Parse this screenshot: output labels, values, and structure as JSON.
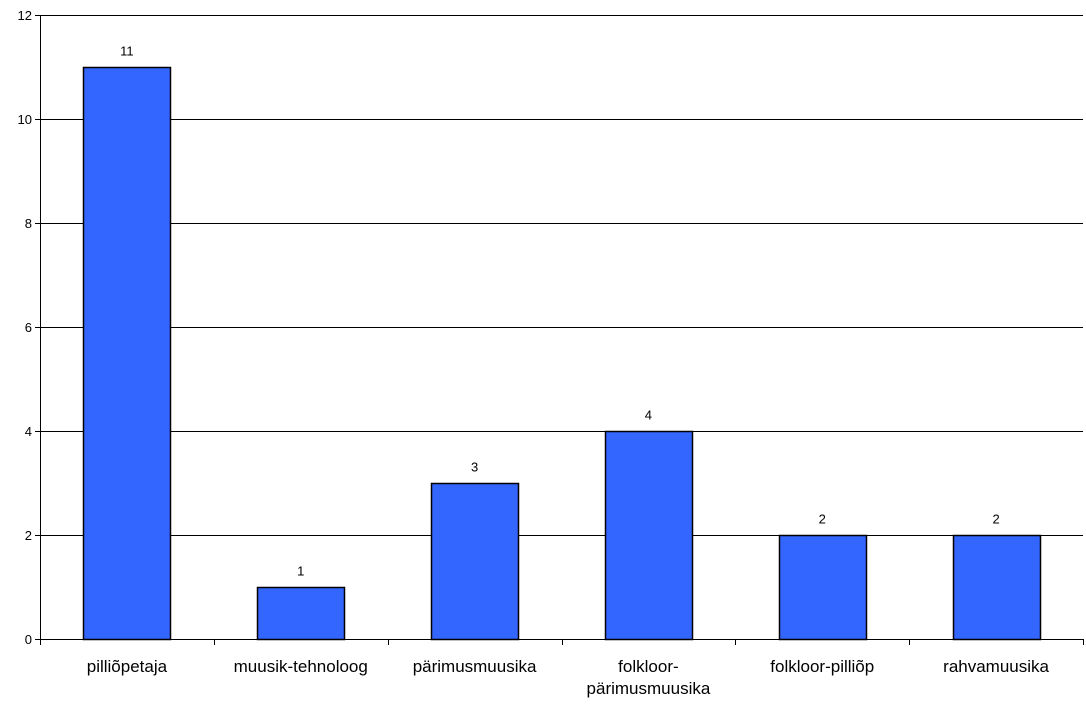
{
  "chart_data": {
    "type": "bar",
    "title": "",
    "xlabel": "",
    "ylabel": "",
    "categories": [
      [
        "pilliõpetaja"
      ],
      [
        "muusik-tehnoloog"
      ],
      [
        "pärimusmuusika"
      ],
      [
        "folkloor-",
        "pärimusmuusika"
      ],
      [
        "folkloor-pilliõp"
      ],
      [
        "rahvamuusika"
      ]
    ],
    "values": [
      11,
      1,
      3,
      4,
      2,
      2
    ],
    "ylim": [
      0,
      12
    ],
    "yticks": [
      0,
      2,
      4,
      6,
      8,
      10,
      12
    ],
    "grid": true,
    "legend": "none",
    "bar_color": "#3366ff",
    "bar_stroke": "#000000"
  }
}
